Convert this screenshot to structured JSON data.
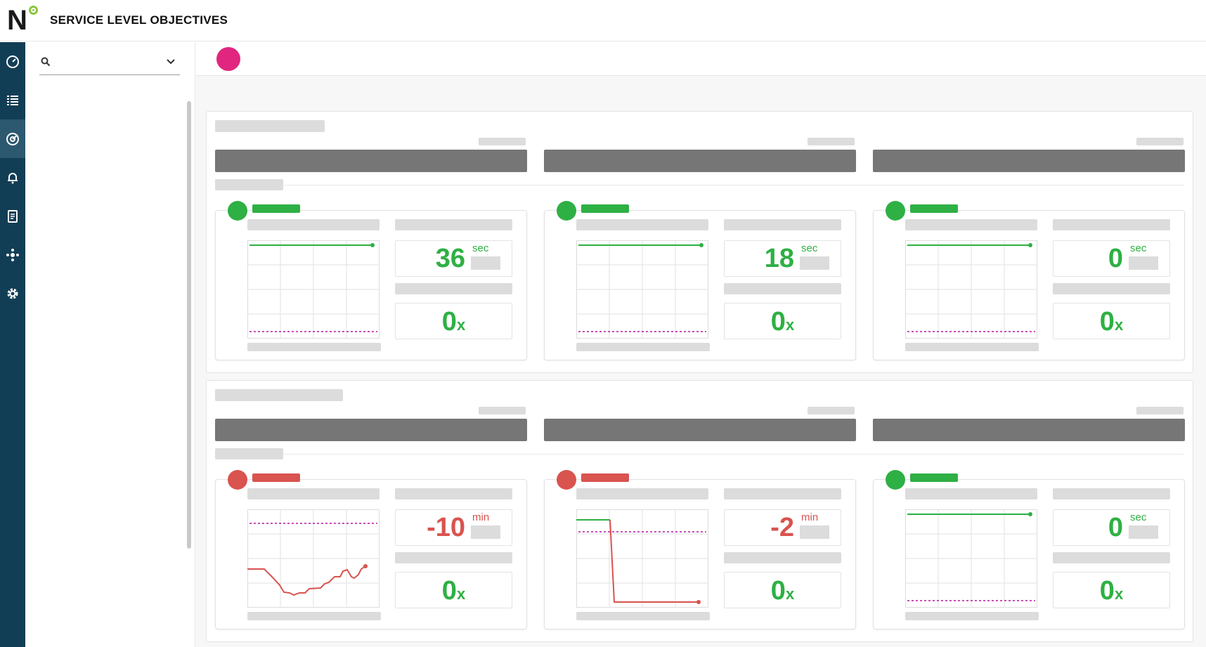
{
  "app": {
    "title": "SERVICE LEVEL OBJECTIVES",
    "logo_letter": "N",
    "accent_color": "#8dc63f",
    "avatar_color": "#e0267f"
  },
  "nav": {
    "items": [
      {
        "name": "dashboard-icon",
        "active": false
      },
      {
        "name": "list-icon",
        "active": false
      },
      {
        "name": "slo-target-icon",
        "active": true
      },
      {
        "name": "bell-icon",
        "active": false
      },
      {
        "name": "report-icon",
        "active": false
      },
      {
        "name": "integrations-icon",
        "active": false
      },
      {
        "name": "gear-icon",
        "active": false
      }
    ]
  },
  "search": {
    "icon": "search-icon",
    "dropdown_icon": "chevron-down-icon"
  },
  "colors": {
    "ok": "#2eb044",
    "bad": "#d9534f",
    "threshold": "#b5179e"
  },
  "groups": [
    {
      "cards": [
        {
          "status": "ok",
          "value": "36",
          "unit": "sec",
          "multiplier": "0",
          "mult_suffix": "x"
        },
        {
          "status": "ok",
          "value": "18",
          "unit": "sec",
          "multiplier": "0",
          "mult_suffix": "x"
        },
        {
          "status": "ok",
          "value": "0",
          "unit": "sec",
          "multiplier": "0",
          "mult_suffix": "x"
        }
      ]
    },
    {
      "cards": [
        {
          "status": "bad",
          "value": "-10",
          "unit": "min",
          "multiplier": "0",
          "mult_suffix": "x"
        },
        {
          "status": "bad",
          "value": "-2",
          "unit": "min",
          "multiplier": "0",
          "mult_suffix": "x"
        },
        {
          "status": "ok",
          "value": "0",
          "unit": "sec",
          "multiplier": "0",
          "mult_suffix": "x"
        }
      ]
    }
  ]
}
